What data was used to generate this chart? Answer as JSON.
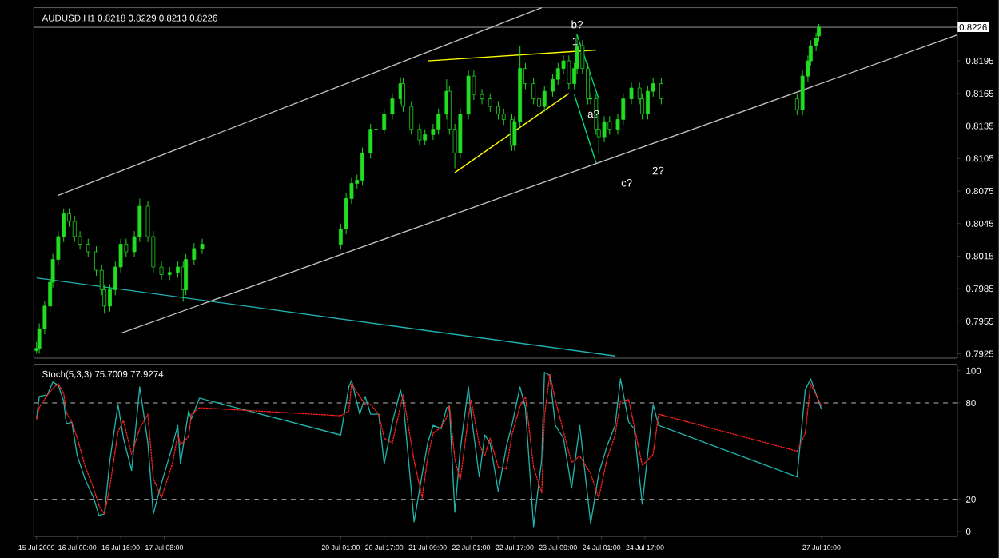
{
  "chart_data": [
    {
      "type": "candlestick",
      "title": "AUDUSD,H1 0.8218 0.8229 0.8213 0.8226",
      "color": "#22dd22",
      "x": [
        "2009-07-15T09:00",
        "2009-07-15T10:00",
        "2009-07-15T12:00",
        "2009-07-15T14:00",
        "2009-07-15T15:00",
        "2009-07-15T17:00",
        "2009-07-15T19:00",
        "2009-07-15T21:00",
        "2009-07-15T23:00",
        "2009-07-16T01:00",
        "2009-07-16T04:00",
        "2009-07-16T07:00",
        "2009-07-16T09:00",
        "2009-07-16T10:00",
        "2009-07-16T12:00",
        "2009-07-16T14:00",
        "2009-07-16T16:00",
        "2009-07-16T18:00",
        "2009-07-16T21:00",
        "2009-07-16T23:00",
        "2009-07-17T02:00",
        "2009-07-17T04:00",
        "2009-07-17T07:00",
        "2009-07-17T10:00",
        "2009-07-17T13:00",
        "2009-07-17T15:00",
        "2009-07-17T16:00",
        "2009-07-17T19:00",
        "2009-07-17T22:00",
        "2009-07-20T01:00",
        "2009-07-20T03:00",
        "2009-07-20T05:00",
        "2009-07-20T07:00",
        "2009-07-20T09:00",
        "2009-07-20T12:00",
        "2009-07-20T14:00",
        "2009-07-20T17:00",
        "2009-07-20T20:00",
        "2009-07-20T23:00",
        "2009-07-21T00:00",
        "2009-07-21T03:00",
        "2009-07-21T06:00",
        "2009-07-21T08:00",
        "2009-07-21T11:00",
        "2009-07-21T13:00",
        "2009-07-21T16:00",
        "2009-07-21T17:00",
        "2009-07-21T19:00",
        "2009-07-21T21:00",
        "2009-07-22T00:00",
        "2009-07-22T02:00",
        "2009-07-22T05:00",
        "2009-07-22T08:00",
        "2009-07-22T11:00",
        "2009-07-22T13:00",
        "2009-07-22T16:00",
        "2009-07-22T17:00",
        "2009-07-22T19:00",
        "2009-07-22T21:00",
        "2009-07-23T00:00",
        "2009-07-23T02:00",
        "2009-07-23T04:00",
        "2009-07-23T07:00",
        "2009-07-23T09:00",
        "2009-07-23T11:00",
        "2009-07-23T13:00",
        "2009-07-23T15:00",
        "2009-07-23T16:00",
        "2009-07-23T18:00",
        "2009-07-23T20:00",
        "2009-07-23T21:00",
        "2009-07-23T23:00",
        "2009-07-24T00:00",
        "2009-07-24T02:00",
        "2009-07-24T04:00",
        "2009-07-24T07:00",
        "2009-07-24T09:00",
        "2009-07-24T12:00",
        "2009-07-24T15:00",
        "2009-07-24T16:00",
        "2009-07-24T18:00",
        "2009-07-24T20:00",
        "2009-07-24T23:00",
        "2009-07-27T01:00",
        "2009-07-27T03:00",
        "2009-07-27T05:00",
        "2009-07-27T06:00",
        "2009-07-27T08:00",
        "2009-07-27T09:00"
      ],
      "ohlc": [
        [
          0.7928,
          0.7936,
          0.7925,
          0.793
        ],
        [
          0.793,
          0.7953,
          0.7925,
          0.7948
        ],
        [
          0.7948,
          0.7974,
          0.7943,
          0.7969
        ],
        [
          0.7969,
          0.7996,
          0.7964,
          0.7991
        ],
        [
          0.7991,
          0.8017,
          0.7986,
          0.8012
        ],
        [
          0.8012,
          0.8038,
          0.8007,
          0.8033
        ],
        [
          0.8033,
          0.8059,
          0.8028,
          0.8054
        ],
        [
          0.8054,
          0.8059,
          0.8042,
          0.8047
        ],
        [
          0.8047,
          0.8052,
          0.8028,
          0.8033
        ],
        [
          0.8033,
          0.8038,
          0.8021,
          0.8026
        ],
        [
          0.8026,
          0.8031,
          0.8014,
          0.8019
        ],
        [
          0.8019,
          0.8024,
          0.7997,
          0.8002
        ],
        [
          0.8002,
          0.8007,
          0.7979,
          0.7984
        ],
        [
          0.7984,
          0.7989,
          0.7962,
          0.7969
        ],
        [
          0.7969,
          0.7989,
          0.7964,
          0.7984
        ],
        [
          0.7984,
          0.801,
          0.7979,
          0.8005
        ],
        [
          0.8005,
          0.8031,
          0.8,
          0.8026
        ],
        [
          0.8026,
          0.8031,
          0.8014,
          0.8019
        ],
        [
          0.8019,
          0.8038,
          0.8014,
          0.8033
        ],
        [
          0.8033,
          0.8068,
          0.8028,
          0.8061
        ],
        [
          0.8061,
          0.8066,
          0.8028,
          0.8033
        ],
        [
          0.8033,
          0.8038,
          0.8,
          0.8005
        ],
        [
          0.8005,
          0.801,
          0.7993,
          0.7998
        ],
        [
          0.7998,
          0.8005,
          0.7993,
          0.8
        ],
        [
          0.8,
          0.801,
          0.7995,
          0.8005
        ],
        [
          0.8005,
          0.801,
          0.7973,
          0.7984
        ],
        [
          0.7984,
          0.8017,
          0.7979,
          0.8012
        ],
        [
          0.8012,
          0.8027,
          0.8007,
          0.8022
        ],
        [
          0.8022,
          0.8031,
          0.8017,
          0.8026
        ],
        [
          0.8026,
          0.8045,
          0.8021,
          0.804
        ],
        [
          0.804,
          0.8073,
          0.8035,
          0.8068
        ],
        [
          0.8068,
          0.8087,
          0.8063,
          0.8082
        ],
        [
          0.8082,
          0.809,
          0.8077,
          0.8085
        ],
        [
          0.8085,
          0.8115,
          0.808,
          0.811
        ],
        [
          0.811,
          0.8137,
          0.8105,
          0.8132
        ],
        [
          0.8132,
          0.8137,
          0.8127,
          0.8132
        ],
        [
          0.8132,
          0.8151,
          0.8127,
          0.8146
        ],
        [
          0.8146,
          0.8165,
          0.8141,
          0.816
        ],
        [
          0.816,
          0.818,
          0.8155,
          0.8174
        ],
        [
          0.8174,
          0.8179,
          0.8148,
          0.8153
        ],
        [
          0.8153,
          0.8158,
          0.8127,
          0.8132
        ],
        [
          0.8132,
          0.8137,
          0.8117,
          0.8122
        ],
        [
          0.8122,
          0.8132,
          0.8117,
          0.8127
        ],
        [
          0.8127,
          0.8137,
          0.8122,
          0.8132
        ],
        [
          0.8132,
          0.8151,
          0.8127,
          0.8146
        ],
        [
          0.8146,
          0.8178,
          0.8141,
          0.8167
        ],
        [
          0.8167,
          0.8172,
          0.8127,
          0.8132
        ],
        [
          0.8132,
          0.8137,
          0.8096,
          0.811
        ],
        [
          0.811,
          0.8151,
          0.8105,
          0.8146
        ],
        [
          0.8146,
          0.8186,
          0.8141,
          0.8181
        ],
        [
          0.8181,
          0.8186,
          0.8159,
          0.8164
        ],
        [
          0.8164,
          0.8169,
          0.8155,
          0.816
        ],
        [
          0.816,
          0.8165,
          0.8148,
          0.8153
        ],
        [
          0.8153,
          0.8158,
          0.8141,
          0.8146
        ],
        [
          0.8146,
          0.8151,
          0.8136,
          0.8141
        ],
        [
          0.8141,
          0.8146,
          0.8112,
          0.8117
        ],
        [
          0.8117,
          0.8144,
          0.8112,
          0.8139
        ],
        [
          0.8139,
          0.8209,
          0.8134,
          0.8188
        ],
        [
          0.8188,
          0.8193,
          0.8169,
          0.8174
        ],
        [
          0.8174,
          0.8179,
          0.8155,
          0.816
        ],
        [
          0.816,
          0.8165,
          0.8148,
          0.8153
        ],
        [
          0.8153,
          0.8172,
          0.8148,
          0.8167
        ],
        [
          0.8167,
          0.8183,
          0.8162,
          0.8178
        ],
        [
          0.8178,
          0.8193,
          0.8173,
          0.8188
        ],
        [
          0.8188,
          0.82,
          0.8183,
          0.8195
        ],
        [
          0.8195,
          0.82,
          0.8169,
          0.8174
        ],
        [
          0.8174,
          0.8193,
          0.8169,
          0.8188
        ],
        [
          0.8188,
          0.822,
          0.8183,
          0.8209
        ],
        [
          0.8209,
          0.8214,
          0.8183,
          0.8188
        ],
        [
          0.8188,
          0.8193,
          0.8155,
          0.816
        ],
        [
          0.816,
          0.8165,
          0.8155,
          0.816
        ],
        [
          0.816,
          0.8165,
          0.8127,
          0.8132
        ],
        [
          0.8132,
          0.8137,
          0.8109,
          0.8125
        ],
        [
          0.8125,
          0.8144,
          0.812,
          0.8139
        ],
        [
          0.8139,
          0.8144,
          0.8127,
          0.8132
        ],
        [
          0.8132,
          0.8146,
          0.8127,
          0.8141
        ],
        [
          0.8141,
          0.8165,
          0.8136,
          0.816
        ],
        [
          0.816,
          0.8175,
          0.8155,
          0.817
        ],
        [
          0.817,
          0.8175,
          0.8155,
          0.816
        ],
        [
          0.816,
          0.8165,
          0.8141,
          0.8146
        ],
        [
          0.8146,
          0.8172,
          0.8141,
          0.8167
        ],
        [
          0.8167,
          0.8179,
          0.8162,
          0.8174
        ],
        [
          0.8174,
          0.8179,
          0.8155,
          0.816
        ],
        [
          0.816,
          0.8165,
          0.8145,
          0.815
        ],
        [
          0.815,
          0.8186,
          0.8145,
          0.8181
        ],
        [
          0.8181,
          0.82,
          0.8176,
          0.8195
        ],
        [
          0.8195,
          0.8214,
          0.819,
          0.8209
        ],
        [
          0.8209,
          0.8221,
          0.8204,
          0.8216
        ],
        [
          0.8218,
          0.8229,
          0.8213,
          0.8226
        ]
      ],
      "series": [
        {
          "type": "line",
          "color": "#ffff00",
          "x": [
            "2009-07-21T09:00",
            "2009-07-23T23:00"
          ],
          "values": [
            0.8195,
            0.8205
          ]
        },
        {
          "type": "line",
          "color": "#ffff00",
          "x": [
            "2009-07-21T19:00",
            "2009-07-23T13:00"
          ],
          "values": [
            0.8092,
            0.8165
          ]
        },
        {
          "type": "line",
          "color": "#00e080",
          "x": [
            "2009-07-23T16:00",
            "2009-07-24T00:00"
          ],
          "values": [
            0.8219,
            0.816
          ]
        },
        {
          "type": "line",
          "color": "#00e080",
          "x": [
            "2009-07-23T15:00",
            "2009-07-23T23:00"
          ],
          "values": [
            0.8164,
            0.8101
          ]
        },
        {
          "type": "line",
          "color": "#c0c0c0",
          "x": [
            "2009-07-15T17:00",
            "2009-07-23T03:00"
          ],
          "values": [
            0.8071,
            0.8244
          ]
        },
        {
          "type": "line",
          "color": "#c0c0c0",
          "x": [
            "2009-07-16T16:00",
            "2009-07-29T12:00"
          ],
          "values": [
            0.7944,
            0.8219
          ]
        },
        {
          "type": "line",
          "color": "#20b0b0",
          "x": [
            "2009-07-15T09:00",
            "2009-07-24T06:00"
          ],
          "values": [
            0.7995,
            0.7923
          ]
        }
      ],
      "ref_lines": [
        {
          "axis": "y",
          "value": 0.8226,
          "label": "0.8226",
          "color": "#a0a0a0"
        }
      ],
      "annotations": [
        "1",
        {
          "text": "b?",
          "x": "2009-07-23T16:00",
          "y": 0.822
        },
        "a?",
        "c?",
        "2?"
      ],
      "xlim": [
        "2009-07-15T08:00",
        "2009-07-29T12:00"
      ],
      "ylim": [
        0.7921,
        0.8244
      ],
      "yticks": [
        0.7925,
        0.7955,
        0.7985,
        0.8015,
        0.8045,
        0.8075,
        0.8105,
        0.8135,
        0.8165,
        0.8195
      ],
      "tick_labels": "y"
    },
    {
      "type": "line",
      "title": "Stoch(5,3,3) 75.7009 77.9274",
      "x": [
        "2009-07-15T09:00",
        "2009-07-15T10:00",
        "2009-07-15T13:00",
        "2009-07-15T15:00",
        "2009-07-15T17:00",
        "2009-07-15T19:00",
        "2009-07-15T20:00",
        "2009-07-15T22:00",
        "2009-07-16T00:00",
        "2009-07-16T03:00",
        "2009-07-16T06:00",
        "2009-07-16T08:00",
        "2009-07-16T10:00",
        "2009-07-16T12:00",
        "2009-07-16T15:00",
        "2009-07-16T17:00",
        "2009-07-16T20:00",
        "2009-07-16T23:00",
        "2009-07-17T02:00",
        "2009-07-17T04:00",
        "2009-07-17T07:00",
        "2009-07-17T11:00",
        "2009-07-17T13:00",
        "2009-07-17T14:00",
        "2009-07-17T17:00",
        "2009-07-17T18:00",
        "2009-07-17T21:00",
        "2009-07-20T01:00",
        "2009-07-20T04:00",
        "2009-07-20T05:00",
        "2009-07-20T08:00",
        "2009-07-20T10:00",
        "2009-07-20T12:00",
        "2009-07-20T15:00",
        "2009-07-20T17:00",
        "2009-07-20T20:00",
        "2009-07-20T23:00",
        "2009-07-21T00:00",
        "2009-07-21T04:00",
        "2009-07-21T07:00",
        "2009-07-21T09:00",
        "2009-07-21T11:00",
        "2009-07-21T14:00",
        "2009-07-21T16:00",
        "2009-07-21T17:00",
        "2009-07-21T19:00",
        "2009-07-21T21:00",
        "2009-07-22T00:00",
        "2009-07-22T01:00",
        "2009-07-22T04:00",
        "2009-07-22T06:00",
        "2009-07-22T08:00",
        "2009-07-22T11:00",
        "2009-07-22T14:00",
        "2009-07-22T16:00",
        "2009-07-22T19:00",
        "2009-07-22T21:00",
        "2009-07-23T00:00",
        "2009-07-23T03:00",
        "2009-07-23T04:00",
        "2009-07-23T06:00",
        "2009-07-23T08:00",
        "2009-07-23T11:00",
        "2009-07-23T14:00",
        "2009-07-23T17:00",
        "2009-07-23T21:00",
        "2009-07-24T00:00",
        "2009-07-24T03:00",
        "2009-07-24T06:00",
        "2009-07-24T08:00",
        "2009-07-24T11:00",
        "2009-07-24T13:00",
        "2009-07-24T16:00",
        "2009-07-24T20:00",
        "2009-07-24T22:00",
        "2009-07-27T01:00",
        "2009-07-27T04:00",
        "2009-07-27T06:00",
        "2009-07-27T10:00"
      ],
      "series": [
        {
          "color": "#20b2aa",
          "line_style": "solid",
          "values": [
            70,
            84,
            85,
            93,
            91,
            81,
            67,
            68,
            47,
            32,
            21,
            10,
            11,
            44,
            79,
            58,
            38,
            90,
            55,
            11,
            30,
            53,
            66,
            42,
            75,
            70,
            83,
            60,
            90,
            94,
            73,
            84,
            73,
            73,
            42,
            68,
            88,
            81,
            6,
            36,
            55,
            66,
            64,
            77,
            78,
            12,
            51,
            90,
            73,
            34,
            60,
            55,
            25,
            53,
            66,
            90,
            77,
            3,
            45,
            99,
            97,
            66,
            58,
            27,
            66,
            5,
            36,
            53,
            66,
            95,
            68,
            64,
            17,
            79,
            66,
            34,
            88,
            95,
            76
          ]
        },
        {
          "color": "#ff2020",
          "line_style": "dotted",
          "values": [
            70,
            77,
            85,
            89,
            92,
            86,
            74,
            68,
            58,
            40,
            27,
            16,
            11,
            28,
            62,
            69,
            48,
            64,
            73,
            33,
            21,
            42,
            60,
            54,
            59,
            73,
            77,
            72,
            75,
            92,
            84,
            79,
            79,
            73,
            58,
            55,
            78,
            85,
            44,
            21,
            46,
            61,
            65,
            71,
            78,
            45,
            32,
            71,
            82,
            54,
            47,
            58,
            40,
            39,
            60,
            78,
            84,
            40,
            24,
            72,
            98,
            82,
            62,
            43,
            47,
            36,
            21,
            45,
            60,
            81,
            82,
            66,
            41,
            48,
            73,
            50,
            61,
            92,
            78
          ]
        }
      ],
      "ref_lines": [
        {
          "axis": "y",
          "value": 80,
          "line_style": "dashed",
          "color": "#c0c0c0"
        },
        {
          "axis": "y",
          "value": 20,
          "line_style": "dashed",
          "color": "#c0c0c0"
        }
      ],
      "xlim": [
        "2009-07-15T08:00",
        "2009-07-29T12:00"
      ],
      "ylim": [
        -3,
        104
      ],
      "xticks": [
        {
          "value": "2009-07-15T09:00",
          "label": "15 Jul 2009"
        },
        {
          "value": "2009-07-16T00:00",
          "label": "16 Jul 00:00"
        },
        {
          "value": "2009-07-16T16:00",
          "label": "16 Jul 16:00"
        },
        {
          "value": "2009-07-17T08:00",
          "label": "17 Jul 08:00"
        },
        {
          "value": "2009-07-20T01:00",
          "label": "20 Jul 01:00"
        },
        {
          "value": "2009-07-20T17:00",
          "label": "20 Jul 17:00"
        },
        {
          "value": "2009-07-21T09:00",
          "label": "21 Jul 09:00"
        },
        {
          "value": "2009-07-22T01:00",
          "label": "22 Jul 01:00"
        },
        {
          "value": "2009-07-22T17:00",
          "label": "22 Jul 17:00"
        },
        {
          "value": "2009-07-23T09:00",
          "label": "23 Jul 09:00"
        },
        {
          "value": "2009-07-24T01:00",
          "label": "24 Jul 01:00"
        },
        {
          "value": "2009-07-24T17:00",
          "label": "24 Jul 17:00"
        },
        {
          "value": "2009-07-27T10:00",
          "label": "27 Jul 10:00"
        }
      ],
      "yticks": [
        0,
        20,
        80,
        100
      ]
    }
  ]
}
